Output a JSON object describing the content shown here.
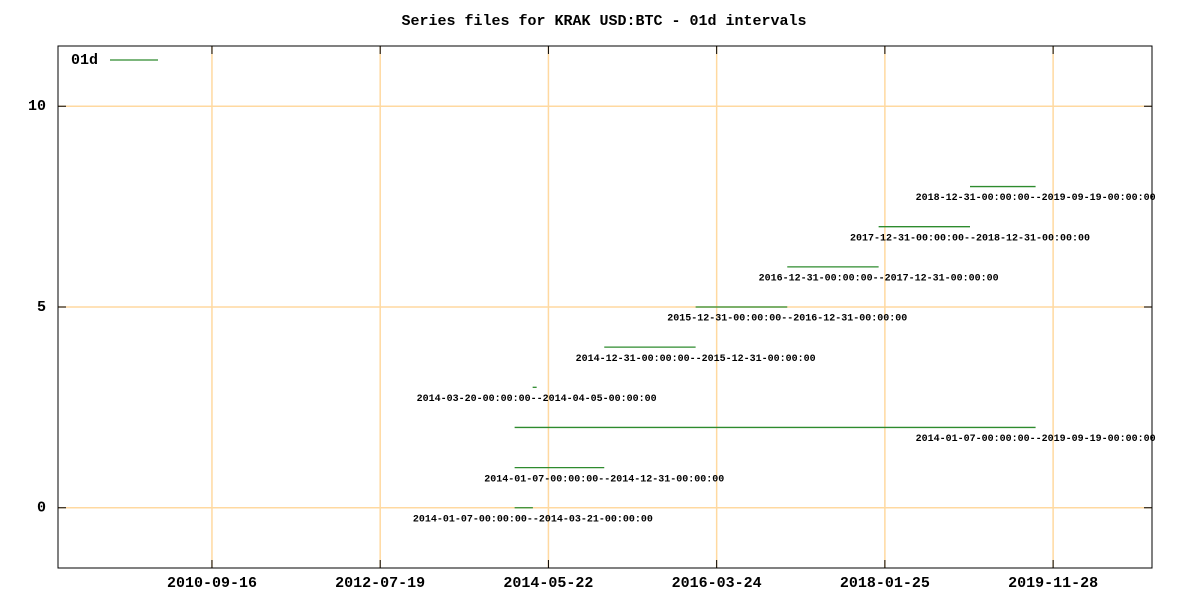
{
  "chart_data": {
    "type": "interval",
    "title": "Series files for KRAK USD:BTC - 01d intervals",
    "xlim": [
      "2009-01-09",
      "2020-12-27"
    ],
    "xticks": [
      "2010-09-16",
      "2012-07-19",
      "2014-05-22",
      "2016-03-24",
      "2018-01-25",
      "2019-11-28"
    ],
    "ylim": [
      -1.5,
      11.5
    ],
    "yticks": [
      0,
      5,
      10
    ],
    "grid": true,
    "grid_color": "#ffd9a0",
    "legend": "top-left",
    "series": [
      {
        "name": "01d",
        "color": "#2e8b2e",
        "segments": [
          {
            "y": 0,
            "start": "2014-01-07",
            "end": "2014-03-21",
            "label": "2014-01-07-00:00:00--2014-03-21-00:00:00"
          },
          {
            "y": 1,
            "start": "2014-01-07",
            "end": "2014-12-31",
            "label": "2014-01-07-00:00:00--2014-12-31-00:00:00"
          },
          {
            "y": 2,
            "start": "2014-01-07",
            "end": "2019-09-19",
            "label": "2014-01-07-00:00:00--2019-09-19-00:00:00"
          },
          {
            "y": 3,
            "start": "2014-03-20",
            "end": "2014-04-05",
            "label": "2014-03-20-00:00:00--2014-04-05-00:00:00"
          },
          {
            "y": 4,
            "start": "2014-12-31",
            "end": "2015-12-31",
            "label": "2014-12-31-00:00:00--2015-12-31-00:00:00"
          },
          {
            "y": 5,
            "start": "2015-12-31",
            "end": "2016-12-31",
            "label": "2015-12-31-00:00:00--2016-12-31-00:00:00"
          },
          {
            "y": 6,
            "start": "2016-12-31",
            "end": "2017-12-31",
            "label": "2016-12-31-00:00:00--2017-12-31-00:00:00"
          },
          {
            "y": 7,
            "start": "2017-12-31",
            "end": "2018-12-31",
            "label": "2017-12-31-00:00:00--2018-12-31-00:00:00"
          },
          {
            "y": 8,
            "start": "2018-12-31",
            "end": "2019-09-19",
            "label": "2018-12-31-00:00:00--2019-09-19-00:00:00"
          }
        ]
      }
    ]
  }
}
